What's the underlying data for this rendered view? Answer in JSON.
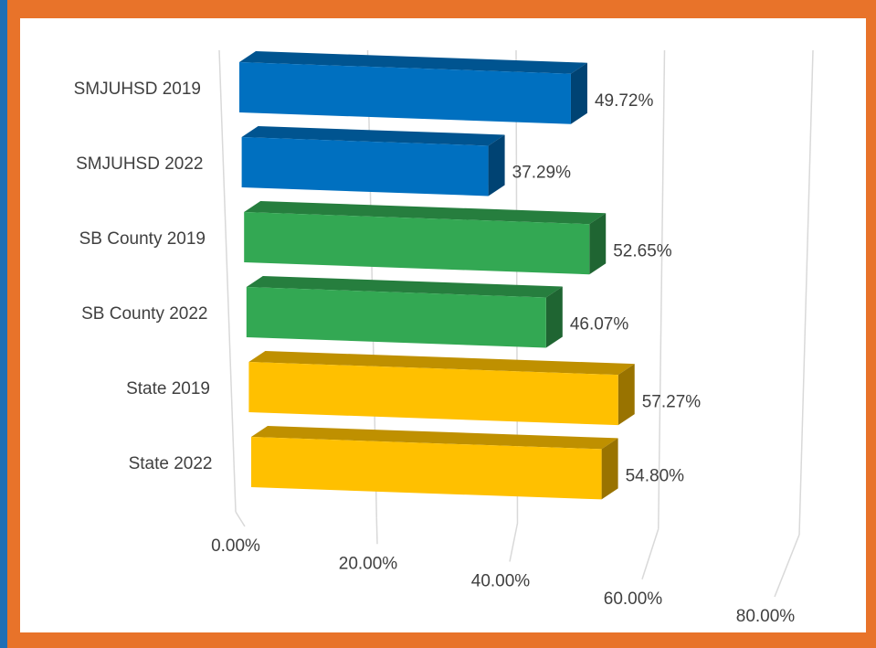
{
  "chart_data": {
    "type": "bar3d",
    "orientation": "horizontal",
    "categories": [
      "SMJUHSD 2019",
      "SMJUHSD 2022",
      "SB County 2019",
      "SB County 2022",
      "State 2019",
      "State 2022"
    ],
    "values": [
      49.72,
      37.29,
      52.65,
      46.07,
      57.27,
      54.8
    ],
    "value_labels": [
      "49.72%",
      "37.29%",
      "52.65%",
      "46.07%",
      "57.27%",
      "54.80%"
    ],
    "colors": [
      "#0070c0",
      "#0070c0",
      "#33a853",
      "#33a853",
      "#ffc000",
      "#ffc000"
    ],
    "xlim": [
      0,
      80
    ],
    "xticks": [
      {
        "value": 0,
        "label": "0.00%"
      },
      {
        "value": 20,
        "label": "20.00%"
      },
      {
        "value": 40,
        "label": "40.00%"
      },
      {
        "value": 60,
        "label": "60.00%"
      },
      {
        "value": 80,
        "label": "80.00%"
      }
    ],
    "grid": true
  }
}
